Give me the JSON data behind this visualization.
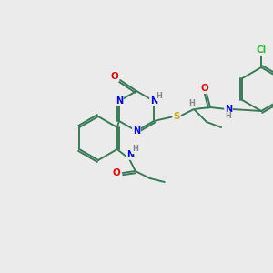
{
  "bg_color": "#ebebeb",
  "atom_colors": {
    "C": "#3a7a5a",
    "N": "#0000ee",
    "O": "#ee0000",
    "S": "#ccaa00",
    "Cl": "#33bb33",
    "H": "#888888"
  },
  "bond_color": "#3a7a5a",
  "figsize": [
    3.0,
    3.0
  ],
  "dpi": 100
}
